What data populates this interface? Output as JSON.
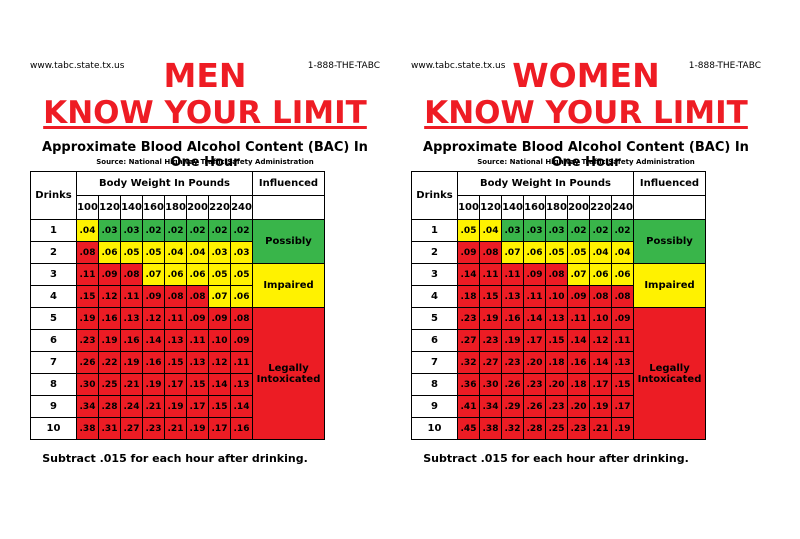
{
  "colors": {
    "red": "#ec1c24",
    "yellow": "#fff200",
    "green": "#39b54a",
    "title_red": "#ee1c24"
  },
  "men": {
    "url": "www.tabc.state.tx.us",
    "phone": "1-888-THE-TABC",
    "gender": "MEN",
    "limit": "KNOW YOUR LIMIT",
    "subtitle": "Approximate Blood Alcohol Content (BAC) In One Hour",
    "source": "Source: National Highway Traffic Safety Administration",
    "drinks_header": "Drinks",
    "weight_header": "Body Weight In Pounds",
    "influenced_header": "Influenced",
    "weights": [
      "100",
      "120",
      "140",
      "160",
      "180",
      "200",
      "220",
      "240"
    ],
    "drinks": [
      "1",
      "2",
      "3",
      "4",
      "5",
      "6",
      "7",
      "8",
      "9",
      "10"
    ],
    "rows": [
      [
        ".04",
        ".03",
        ".03",
        ".02",
        ".02",
        ".02",
        ".02",
        ".02"
      ],
      [
        ".08",
        ".06",
        ".05",
        ".05",
        ".04",
        ".04",
        ".03",
        ".03"
      ],
      [
        ".11",
        ".09",
        ".08",
        ".07",
        ".06",
        ".06",
        ".05",
        ".05"
      ],
      [
        ".15",
        ".12",
        ".11",
        ".09",
        ".08",
        ".08",
        ".07",
        ".06"
      ],
      [
        ".19",
        ".16",
        ".13",
        ".12",
        ".11",
        ".09",
        ".09",
        ".08"
      ],
      [
        ".23",
        ".19",
        ".16",
        ".14",
        ".13",
        ".11",
        ".10",
        ".09"
      ],
      [
        ".26",
        ".22",
        ".19",
        ".16",
        ".15",
        ".13",
        ".12",
        ".11"
      ],
      [
        ".30",
        ".25",
        ".21",
        ".19",
        ".17",
        ".15",
        ".14",
        ".13"
      ],
      [
        ".34",
        ".28",
        ".24",
        ".21",
        ".19",
        ".17",
        ".15",
        ".14"
      ],
      [
        ".38",
        ".31",
        ".27",
        ".23",
        ".21",
        ".19",
        ".17",
        ".16"
      ]
    ],
    "levels": [
      "yggggggg",
      "ryyyyyyy",
      "rrryyyyy",
      "rrrrrryy",
      "rrrrrrrr",
      "rrrrrrrr",
      "rrrrrrrr",
      "rrrrrrrr",
      "rrrrrrrr",
      "rrrrrrrr"
    ],
    "label_possibly": "Possibly",
    "label_impaired": "Impaired",
    "label_legally_1": "Legally",
    "label_legally_2": "Intoxicated",
    "note": "Subtract .015 for each hour after drinking."
  },
  "women": {
    "url": "www.tabc.state.tx.us",
    "phone": "1-888-THE-TABC",
    "gender": "WOMEN",
    "limit": "KNOW YOUR LIMIT",
    "subtitle": "Approximate Blood Alcohol Content (BAC) In One Hour",
    "source": "Source: National Highway Traffic Safety Administration",
    "drinks_header": "Drinks",
    "weight_header": "Body Weight In Pounds",
    "influenced_header": "Influenced",
    "weights": [
      "100",
      "120",
      "140",
      "160",
      "180",
      "200",
      "220",
      "240"
    ],
    "drinks": [
      "1",
      "2",
      "3",
      "4",
      "5",
      "6",
      "7",
      "8",
      "9",
      "10"
    ],
    "rows": [
      [
        ".05",
        ".04",
        ".03",
        ".03",
        ".03",
        ".02",
        ".02",
        ".02"
      ],
      [
        ".09",
        ".08",
        ".07",
        ".06",
        ".05",
        ".05",
        ".04",
        ".04"
      ],
      [
        ".14",
        ".11",
        ".11",
        ".09",
        ".08",
        ".07",
        ".06",
        ".06"
      ],
      [
        ".18",
        ".15",
        ".13",
        ".11",
        ".10",
        ".09",
        ".08",
        ".08"
      ],
      [
        ".23",
        ".19",
        ".16",
        ".14",
        ".13",
        ".11",
        ".10",
        ".09"
      ],
      [
        ".27",
        ".23",
        ".19",
        ".17",
        ".15",
        ".14",
        ".12",
        ".11"
      ],
      [
        ".32",
        ".27",
        ".23",
        ".20",
        ".18",
        ".16",
        ".14",
        ".13"
      ],
      [
        ".36",
        ".30",
        ".26",
        ".23",
        ".20",
        ".18",
        ".17",
        ".15"
      ],
      [
        ".41",
        ".34",
        ".29",
        ".26",
        ".23",
        ".20",
        ".19",
        ".17"
      ],
      [
        ".45",
        ".38",
        ".32",
        ".28",
        ".25",
        ".23",
        ".21",
        ".19"
      ]
    ],
    "levels": [
      "yygggggg",
      "rryyyyyy",
      "rrrrryyy",
      "rrrrrrrr",
      "rrrrrrrr",
      "rrrrrrrr",
      "rrrrrrrr",
      "rrrrrrrr",
      "rrrrrrrr",
      "rrrrrrrr"
    ],
    "label_possibly": "Possibly",
    "label_impaired": "Impaired",
    "label_legally_1": "Legally",
    "label_legally_2": "Intoxicated",
    "note": "Subtract .015 for each hour after drinking."
  }
}
